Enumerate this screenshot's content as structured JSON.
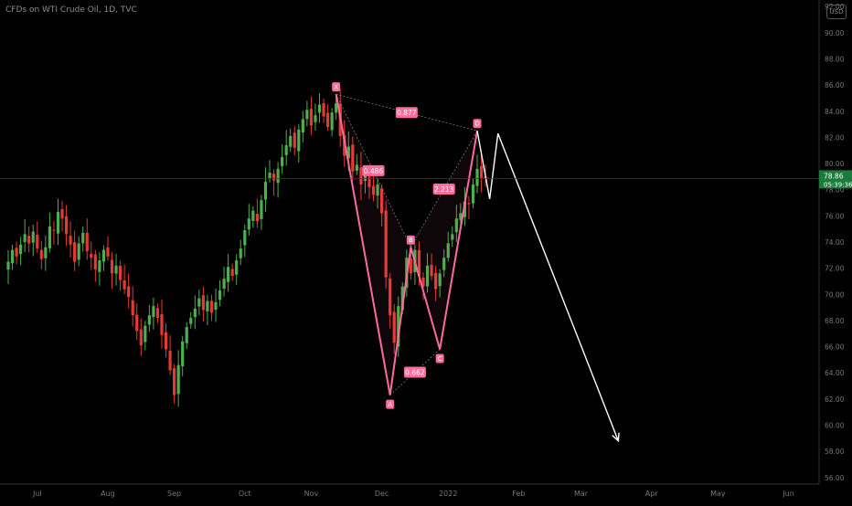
{
  "header": {
    "symbol": "CFDs on WTI Crude Oil, 1D, TVC",
    "currency": "USD"
  },
  "price_tag": {
    "price": "78.86",
    "countdown": "05:39:36"
  },
  "colors": {
    "up": "#4caf50",
    "down": "#e53935",
    "pattern": "#ff6b9d",
    "projection": "#ffffff",
    "tag_bg": "#1b7a3c"
  },
  "chart_data": {
    "type": "candlestick",
    "xlabel": "",
    "ylabel": "",
    "ylim": [
      55.5,
      92.5
    ],
    "y_ticks": [
      "92.00",
      "90.00",
      "88.00",
      "86.00",
      "84.00",
      "82.00",
      "80.00",
      "78.00",
      "76.00",
      "74.00",
      "72.00",
      "70.00",
      "68.00",
      "66.00",
      "64.00",
      "62.00",
      "60.00",
      "58.00",
      "56.00"
    ],
    "x_ticks": [
      "Jul",
      "Aug",
      "Sep",
      "Oct",
      "Nov",
      "Dec",
      "2022",
      "Feb",
      "Mar",
      "Apr",
      "May",
      "Jun"
    ],
    "close_series_description_note": "",
    "close": [
      72.5,
      73.4,
      72.9,
      73.8,
      74.6,
      73.9,
      74.8,
      73.5,
      72.7,
      73.6,
      75.2,
      74.9,
      76.3,
      75.8,
      74.6,
      73.8,
      72.5,
      73.9,
      74.7,
      73.3,
      72.8,
      71.9,
      72.6,
      73.4,
      72.9,
      71.6,
      72.2,
      71.1,
      70.4,
      69.8,
      68.4,
      67.2,
      66.1,
      67.6,
      68.4,
      69.1,
      68.2,
      66.9,
      65.8,
      64.2,
      62.3,
      64.6,
      66.4,
      67.5,
      68.2,
      68.9,
      69.7,
      68.8,
      69.5,
      68.6,
      69.4,
      70.3,
      71.2,
      72.1,
      71.4,
      72.6,
      73.5,
      74.9,
      75.8,
      76.4,
      75.6,
      77.2,
      78.6,
      79.3,
      78.7,
      79.6,
      80.5,
      81.4,
      82.1,
      81.2,
      82.6,
      83.4,
      84.1,
      82.9,
      83.7,
      84.5,
      83.6,
      82.8,
      83.9,
      84.6,
      82.1,
      80.6,
      81.3,
      79.4,
      79.9,
      78.4,
      79.1,
      78.2,
      77.6,
      78.4,
      76.2,
      71.3,
      68.4,
      66.3,
      69.1,
      70.6,
      72.8,
      71.6,
      73.4,
      71.4,
      70.6,
      72.2,
      71.4,
      70.4,
      71.6,
      72.8,
      73.9,
      74.6,
      75.8,
      76.2,
      77.1,
      76.9,
      78.4,
      79.6,
      78.9,
      78.86
    ],
    "patterns": [
      {
        "name": "XABCD",
        "points": [
          {
            "label": "X",
            "bar": 79,
            "price": 85.3
          },
          {
            "label": "A",
            "bar": 92,
            "price": 62.3
          },
          {
            "label": "B",
            "bar": 97,
            "price": 73.6
          },
          {
            "label": "C",
            "bar": 104,
            "price": 65.8
          },
          {
            "label": "D",
            "bar": 113,
            "price": 82.5
          }
        ],
        "ratios": [
          "0.486",
          "0.662",
          "2.213",
          "0.877"
        ]
      }
    ],
    "projection": [
      {
        "bar": 113,
        "price": 82.5
      },
      {
        "bar": 116,
        "price": 77.3
      },
      {
        "bar": 118,
        "price": 82.3
      },
      {
        "bar": 147,
        "price": 58.8
      }
    ]
  }
}
